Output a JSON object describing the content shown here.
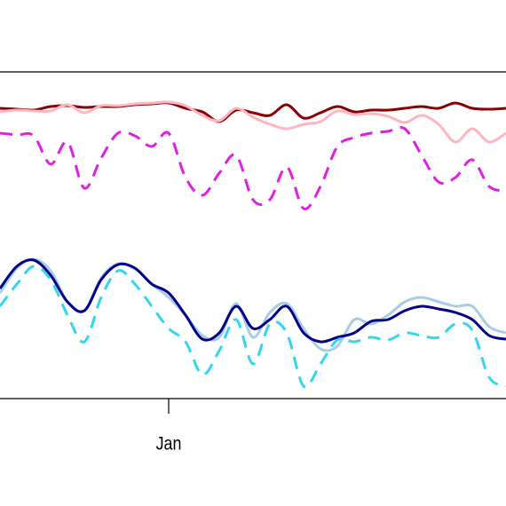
{
  "chart_data": {
    "type": "line",
    "categories": [
      null,
      null,
      null,
      null,
      null,
      null,
      null,
      null,
      null,
      null,
      "Jan",
      null,
      null,
      null,
      null,
      null,
      null,
      null,
      null,
      null,
      null,
      null,
      null,
      null,
      null,
      null,
      null,
      null,
      null,
      null,
      null
    ],
    "ylim": [
      0,
      368
    ],
    "series": [
      {
        "color": "#8b0000",
        "dashed": false,
        "values": [
          327,
          326,
          325,
          329,
          330,
          328,
          329,
          329,
          331,
          332,
          333,
          327,
          323,
          312,
          325,
          322,
          319,
          331,
          316,
          322,
          329,
          323,
          325,
          325,
          327,
          329,
          327,
          333,
          327,
          326,
          327
        ]
      },
      {
        "color": "#ffb6c1",
        "dashed": false,
        "values": [
          323,
          325,
          324,
          324,
          331,
          322,
          330,
          330,
          332,
          333,
          334,
          330,
          319,
          313,
          327,
          317,
          309,
          304,
          309,
          312,
          324,
          320,
          321,
          318,
          311,
          319,
          309,
          289,
          304,
          289,
          299
        ]
      },
      {
        "color": "#e020e0",
        "dashed": true,
        "values": [
          299,
          297,
          296,
          264,
          289,
          237,
          271,
          299,
          296,
          284,
          299,
          249,
          229,
          254,
          274,
          224,
          224,
          261,
          214,
          239,
          284,
          294,
          299,
          301,
          304,
          274,
          244,
          249,
          269,
          239,
          234
        ]
      },
      {
        "color": "#a6cee3",
        "dashed": false,
        "values": [
          119,
          147,
          157,
          144,
          109,
          99,
          136,
          152,
          146,
          129,
          114,
          94,
          71,
          69,
          107,
          69,
          97,
          107,
          79,
          56,
          59,
          89,
          84,
          94,
          109,
          114,
          109,
          104,
          104,
          81,
          74
        ]
      },
      {
        "color": "#00008b",
        "dashed": false,
        "values": [
          124,
          149,
          156,
          139,
          109,
          99,
          134,
          151,
          147,
          129,
          119,
          94,
          67,
          74,
          104,
          79,
          89,
          104,
          74,
          64,
          69,
          74,
          87,
          89,
          99,
          104,
          101,
          97,
          89,
          71,
          67
        ]
      },
      {
        "color": "#33d6ee",
        "dashed": true,
        "values": [
          104,
          129,
          149,
          134,
          94,
          64,
          114,
          144,
          129,
          104,
          79,
          64,
          27,
          54,
          89,
          39,
          84,
          74,
          14,
          39,
          66,
          64,
          69,
          66,
          74,
          71,
          69,
          84,
          77,
          24,
          14
        ]
      }
    ]
  }
}
